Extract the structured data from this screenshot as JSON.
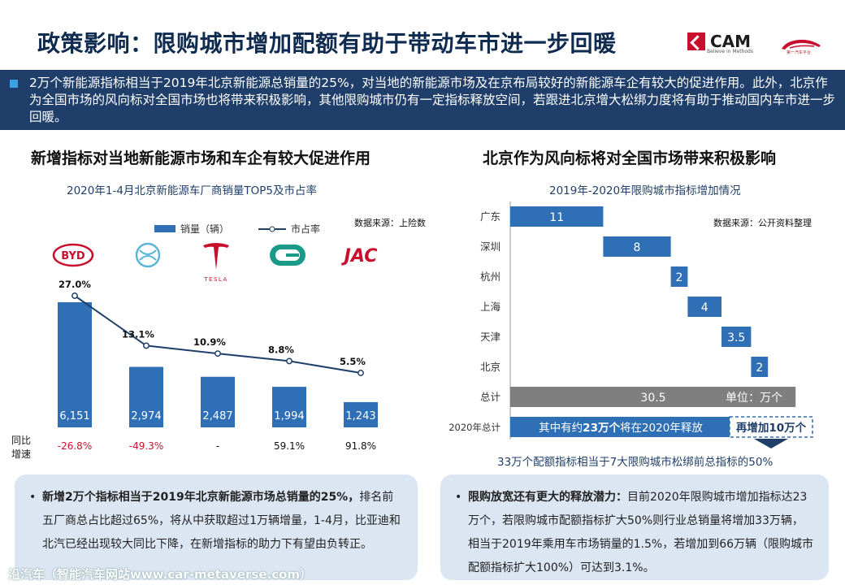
{
  "title": "政策影响：限购城市增加配额有助于带动车市进一步回暖",
  "logos": {
    "cam": "CAM",
    "cam_tagline": "Believe in Methods",
    "partner_tagline": "第一汽车平台"
  },
  "banner": "2万个新能源指标相当于2019年北京新能源总销量的25%，对当地的新能源市场及在京布局较好的新能源车企有较大的促进作用。此外，北京作为全国市场的风向标对全国市场也将带来积极影响，其他限购城市仍有一定指标释放空间，若跟进北京增大松绑力度将有助于推动国内车市进一步回暖。",
  "left": {
    "section_title": "新增指标对当地新能源市场和车企有较大促进作用",
    "chart_title": "2020年1-4月北京新能源车厂商销量TOP5及市占率",
    "legend_bar": "销量（辆）",
    "legend_line": "市占率",
    "source": "数据来源：上险数",
    "yoy_label": "同比\n增速",
    "brand_tesla": "TESLA",
    "brand_jac": "JAC",
    "callout_bold": "新增2万个指标相当于2019年北京新能源市场总销量的25%，",
    "callout_text": "排名前五厂商总占比超过65%，将从中获取超过1万辆增量，1-4月，比亚迪和北汽已经出现较大同比下降，在新增指标的助力下有望由负转正。"
  },
  "right": {
    "section_title": "北京作为风向标将对全国市场带来积极影响",
    "chart_title": "2019年-2020年限购城市指标增加情况",
    "source": "数据来源：公开资料整理",
    "unit_label": "单位：万个",
    "release_text": "其中有约23万个将在2020年释放",
    "release_bold": "23万个",
    "extra_text": "再增加10万个",
    "footer": "33万个配额指标相当于7大限购城市松绑前总指标的50%",
    "callout_bold": "限购放宽还有更大的释放潜力：",
    "callout_text": "目前2020年限购城市增加指标达23万个，若限购城市配额指标扩大50%则行业总销量将增加33万辆，相当于2019年乘用车市场销量的1.5%，若增加到66万辆（限购城市配额指标扩大100%）可达到3.1%。"
  },
  "watermark": "沿汽车（智能汽车网站www.car-metaverse.com）",
  "colors": {
    "bar": "#2e6fb6",
    "line": "#1f3f6a",
    "total": "#7f7f7f",
    "banner": "#1f3f6a",
    "accent_red": "#c8102e"
  },
  "chart_data": [
    {
      "type": "bar",
      "title": "2020年1-4月北京新能源车厂商销量TOP5及市占率",
      "categories": [
        "BYD",
        "BAIC",
        "TESLA",
        "GAC",
        "JAC"
      ],
      "series": [
        {
          "name": "销量（辆）",
          "type": "bar",
          "values": [
            6151,
            2974,
            2487,
            1994,
            1243
          ],
          "labels": [
            "6,151",
            "2,974",
            "2,487",
            "1,994",
            "1,243"
          ]
        },
        {
          "name": "市占率",
          "type": "line",
          "values": [
            27.0,
            13.1,
            10.9,
            8.8,
            5.5
          ],
          "labels": [
            "27.0%",
            "13.1%",
            "10.9%",
            "8.8%",
            "5.5%"
          ]
        }
      ],
      "yoy": [
        "-26.8%",
        "-49.3%",
        "-",
        "59.1%",
        "91.8%"
      ]
    },
    {
      "type": "bar",
      "title": "2019年-2020年限购城市指标增加情况",
      "categories": [
        "广东",
        "深圳",
        "杭州",
        "上海",
        "天津",
        "北京",
        "总计",
        "2020年总计"
      ],
      "values": [
        11,
        8,
        2,
        4,
        3.5,
        2,
        30.5,
        33
      ],
      "labels": [
        "11",
        "8",
        "2",
        "4",
        "3.5",
        "2",
        "30.5",
        ""
      ],
      "xlim": [
        0,
        33
      ]
    }
  ]
}
